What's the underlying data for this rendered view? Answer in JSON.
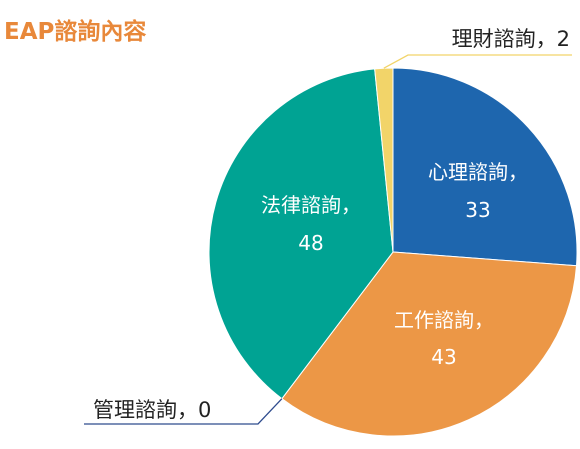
{
  "chart_data": {
    "type": "pie",
    "title": "EAP諮詢內容",
    "slices": [
      {
        "label": "心理諮詢",
        "value": 33,
        "color": "#1E66AE",
        "display": "心理諮詢，",
        "value_text": "33"
      },
      {
        "label": "工作諮詢",
        "value": 43,
        "color": "#EC9746",
        "display": "工作諮詢，",
        "value_text": "43"
      },
      {
        "label": "管理諮詢",
        "value": 0,
        "color": "#2F4C8E",
        "display": "管理諮詢，0"
      },
      {
        "label": "法律諮詢",
        "value": 48,
        "color": "#00A393",
        "display": "法律諮詢，",
        "value_text": "48"
      },
      {
        "label": "理財諮詢",
        "value": 2,
        "color": "#F2D469",
        "display": "理財諮詢，2"
      }
    ]
  }
}
